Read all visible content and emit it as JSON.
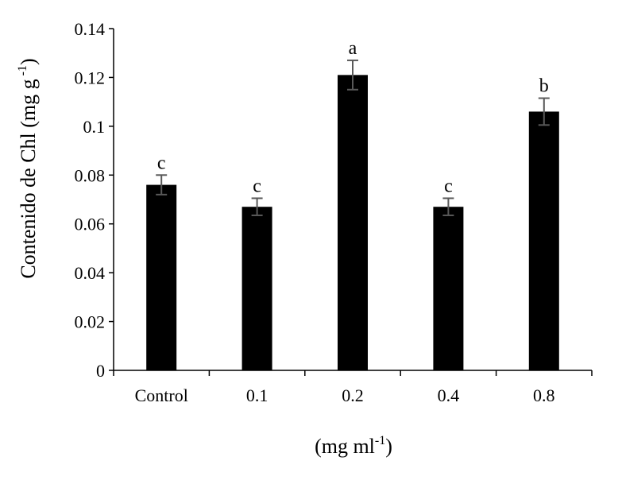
{
  "chart_data": {
    "type": "bar",
    "categories": [
      "Control",
      "0.1",
      "0.2",
      "0.4",
      "0.8"
    ],
    "values": [
      0.076,
      0.067,
      0.121,
      0.067,
      0.106
    ],
    "errors": [
      0.004,
      0.0035,
      0.006,
      0.0035,
      0.0055
    ],
    "significance_letters": [
      "c",
      "c",
      "a",
      "c",
      "b"
    ],
    "title": "",
    "xlabel": {
      "base": "(mg ml",
      "sup": "-1",
      "tail": ")"
    },
    "ylabel": {
      "base": "Contenido de Chl (mg g",
      "sup": " -1",
      "tail": ")"
    },
    "ylim": [
      0,
      0.14
    ],
    "yticks": [
      0,
      0.02,
      0.04,
      0.06,
      0.08,
      0.1,
      0.12,
      0.14
    ],
    "ytick_labels": [
      "0",
      "0.02",
      "0.04",
      "0.06",
      "0.08",
      "0.1",
      "0.12",
      "0.14"
    ],
    "grid": false,
    "bar_color": "#000000",
    "error_bar_color": "#595959"
  }
}
